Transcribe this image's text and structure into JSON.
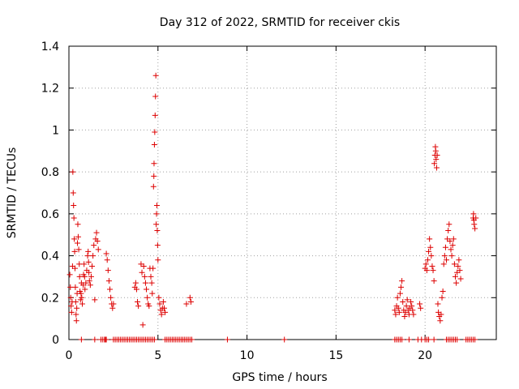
{
  "chart_data": {
    "type": "scatter",
    "title": "Day 312 of 2022, SRMTID for receiver ckis",
    "xlabel": "GPS time / hours",
    "ylabel": "SRMTID / TECUs",
    "xlim": [
      0,
      24
    ],
    "ylim": [
      0,
      1.4
    ],
    "xticks": [
      0,
      5,
      10,
      15,
      20
    ],
    "yticks": [
      0,
      0.2,
      0.4,
      0.6,
      0.8,
      1,
      1.2,
      1.4
    ],
    "ytick_labels": [
      "0",
      "0.2",
      "0.4",
      "0.6",
      "0.8",
      "1",
      "1.2",
      "1.4"
    ],
    "grid": true,
    "marker": "plus",
    "color": "#dd0000",
    "series": [
      {
        "name": "SRMTID",
        "points": [
          [
            0.05,
            0.31
          ],
          [
            0.08,
            0.25
          ],
          [
            0.1,
            0.2
          ],
          [
            0.12,
            0.16
          ],
          [
            0.15,
            0.13
          ],
          [
            0.18,
            0.18
          ],
          [
            0.2,
            0.35
          ],
          [
            0.22,
            0.8
          ],
          [
            0.24,
            0.7
          ],
          [
            0.26,
            0.64
          ],
          [
            0.28,
            0.58
          ],
          [
            0.3,
            0.48
          ],
          [
            0.32,
            0.42
          ],
          [
            0.34,
            0.34
          ],
          [
            0.36,
            0.25
          ],
          [
            0.38,
            0.18
          ],
          [
            0.4,
            0.12
          ],
          [
            0.42,
            0.09
          ],
          [
            0.44,
            0.15
          ],
          [
            0.46,
            0.22
          ],
          [
            0.48,
            0.46
          ],
          [
            0.5,
            0.55
          ],
          [
            0.52,
            0.49
          ],
          [
            0.55,
            0.43
          ],
          [
            0.58,
            0.36
          ],
          [
            0.6,
            0.3
          ],
          [
            0.62,
            0.23
          ],
          [
            0.65,
            0.19
          ],
          [
            0.68,
            0.22
          ],
          [
            0.7,
            0.27
          ],
          [
            0.72,
            0.2
          ],
          [
            0.75,
            0.17
          ],
          [
            0.8,
            0.26
          ],
          [
            0.82,
            0.31
          ],
          [
            0.85,
            0.36
          ],
          [
            0.88,
            0.3
          ],
          [
            0.9,
            0.24
          ],
          [
            0.95,
            0.27
          ],
          [
            1.0,
            0.33
          ],
          [
            1.05,
            0.4
          ],
          [
            1.08,
            0.42
          ],
          [
            1.1,
            0.37
          ],
          [
            1.12,
            0.32
          ],
          [
            1.15,
            0.28
          ],
          [
            1.2,
            0.26
          ],
          [
            1.25,
            0.3
          ],
          [
            1.3,
            0.35
          ],
          [
            1.35,
            0.4
          ],
          [
            1.4,
            0.45
          ],
          [
            1.45,
            0.19
          ],
          [
            1.5,
            0.48
          ],
          [
            1.55,
            0.51
          ],
          [
            1.6,
            0.47
          ],
          [
            1.65,
            0.43
          ],
          [
            2.1,
            0.41
          ],
          [
            2.15,
            0.38
          ],
          [
            2.2,
            0.33
          ],
          [
            2.25,
            0.28
          ],
          [
            2.3,
            0.24
          ],
          [
            2.35,
            0.2
          ],
          [
            2.4,
            0.17
          ],
          [
            2.45,
            0.15
          ],
          [
            2.5,
            0.17
          ],
          [
            3.7,
            0.25
          ],
          [
            3.75,
            0.27
          ],
          [
            3.8,
            0.24
          ],
          [
            3.85,
            0.18
          ],
          [
            3.9,
            0.16
          ],
          [
            4.05,
            0.36
          ],
          [
            4.1,
            0.32
          ],
          [
            4.15,
            0.07
          ],
          [
            4.2,
            0.35
          ],
          [
            4.25,
            0.3
          ],
          [
            4.3,
            0.27
          ],
          [
            4.35,
            0.24
          ],
          [
            4.4,
            0.2
          ],
          [
            4.45,
            0.17
          ],
          [
            4.5,
            0.16
          ],
          [
            4.55,
            0.34
          ],
          [
            4.6,
            0.3
          ],
          [
            4.65,
            0.27
          ],
          [
            4.68,
            0.22
          ],
          [
            4.72,
            0.34
          ],
          [
            4.75,
            0.73
          ],
          [
            4.77,
            0.78
          ],
          [
            4.78,
            0.84
          ],
          [
            4.8,
            0.93
          ],
          [
            4.82,
            0.99
          ],
          [
            4.84,
            1.07
          ],
          [
            4.86,
            1.16
          ],
          [
            4.88,
            1.26
          ],
          [
            4.9,
            0.55
          ],
          [
            4.92,
            0.6
          ],
          [
            4.94,
            0.64
          ],
          [
            4.96,
            0.52
          ],
          [
            4.98,
            0.45
          ],
          [
            5.0,
            0.38
          ],
          [
            5.05,
            0.2
          ],
          [
            5.1,
            0.17
          ],
          [
            5.15,
            0.14
          ],
          [
            5.2,
            0.12
          ],
          [
            5.25,
            0.15
          ],
          [
            5.3,
            0.18
          ],
          [
            5.35,
            0.15
          ],
          [
            5.4,
            0.13
          ],
          [
            6.6,
            0.17
          ],
          [
            6.8,
            0.2
          ],
          [
            6.85,
            0.18
          ],
          [
            18.3,
            0.14
          ],
          [
            18.35,
            0.12
          ],
          [
            18.4,
            0.16
          ],
          [
            18.45,
            0.2
          ],
          [
            18.5,
            0.15
          ],
          [
            18.55,
            0.13
          ],
          [
            18.6,
            0.22
          ],
          [
            18.65,
            0.25
          ],
          [
            18.7,
            0.28
          ],
          [
            18.75,
            0.18
          ],
          [
            18.8,
            0.14
          ],
          [
            18.85,
            0.11
          ],
          [
            18.9,
            0.13
          ],
          [
            18.95,
            0.16
          ],
          [
            19.0,
            0.19
          ],
          [
            19.05,
            0.14
          ],
          [
            19.1,
            0.12
          ],
          [
            19.15,
            0.15
          ],
          [
            19.2,
            0.18
          ],
          [
            19.25,
            0.16
          ],
          [
            19.3,
            0.14
          ],
          [
            19.35,
            0.12
          ],
          [
            19.7,
            0.17
          ],
          [
            19.75,
            0.15
          ],
          [
            20.0,
            0.34
          ],
          [
            20.05,
            0.36
          ],
          [
            20.1,
            0.33
          ],
          [
            20.15,
            0.38
          ],
          [
            20.2,
            0.42
          ],
          [
            20.25,
            0.48
          ],
          [
            20.3,
            0.44
          ],
          [
            20.35,
            0.4
          ],
          [
            20.4,
            0.35
          ],
          [
            20.45,
            0.33
          ],
          [
            20.5,
            0.28
          ],
          [
            20.52,
            0.84
          ],
          [
            20.55,
            0.88
          ],
          [
            20.58,
            0.92
          ],
          [
            20.6,
            0.9
          ],
          [
            20.62,
            0.86
          ],
          [
            20.65,
            0.82
          ],
          [
            20.68,
            0.88
          ],
          [
            20.72,
            0.17
          ],
          [
            20.75,
            0.13
          ],
          [
            20.8,
            0.11
          ],
          [
            20.85,
            0.09
          ],
          [
            20.9,
            0.12
          ],
          [
            20.95,
            0.2
          ],
          [
            21.0,
            0.23
          ],
          [
            21.05,
            0.36
          ],
          [
            21.1,
            0.4
          ],
          [
            21.15,
            0.44
          ],
          [
            21.2,
            0.38
          ],
          [
            21.25,
            0.48
          ],
          [
            21.3,
            0.52
          ],
          [
            21.35,
            0.55
          ],
          [
            21.4,
            0.47
          ],
          [
            21.45,
            0.43
          ],
          [
            21.5,
            0.4
          ],
          [
            21.55,
            0.45
          ],
          [
            21.6,
            0.48
          ],
          [
            21.65,
            0.36
          ],
          [
            21.7,
            0.3
          ],
          [
            21.75,
            0.27
          ],
          [
            21.8,
            0.32
          ],
          [
            21.85,
            0.35
          ],
          [
            21.9,
            0.38
          ],
          [
            21.95,
            0.33
          ],
          [
            22.0,
            0.29
          ],
          [
            22.7,
            0.58
          ],
          [
            22.72,
            0.6
          ],
          [
            22.74,
            0.57
          ],
          [
            22.76,
            0.55
          ],
          [
            22.8,
            0.53
          ],
          [
            22.85,
            0.58
          ],
          [
            0.7,
            0.0
          ],
          [
            1.45,
            0.0
          ],
          [
            1.8,
            0.0
          ],
          [
            1.9,
            0.0
          ],
          [
            2.0,
            0.0
          ],
          [
            2.05,
            0.0
          ],
          [
            2.1,
            0.0
          ],
          [
            2.5,
            0.0
          ],
          [
            2.6,
            0.0
          ],
          [
            2.7,
            0.0
          ],
          [
            2.8,
            0.0
          ],
          [
            2.9,
            0.0
          ],
          [
            3.0,
            0.0
          ],
          [
            3.1,
            0.0
          ],
          [
            3.2,
            0.0
          ],
          [
            3.3,
            0.0
          ],
          [
            3.4,
            0.0
          ],
          [
            3.5,
            0.0
          ],
          [
            3.6,
            0.0
          ],
          [
            3.7,
            0.0
          ],
          [
            3.8,
            0.0
          ],
          [
            3.9,
            0.0
          ],
          [
            4.0,
            0.0
          ],
          [
            4.1,
            0.0
          ],
          [
            4.2,
            0.0
          ],
          [
            4.3,
            0.0
          ],
          [
            4.4,
            0.0
          ],
          [
            4.5,
            0.0
          ],
          [
            4.6,
            0.0
          ],
          [
            4.7,
            0.0
          ],
          [
            4.8,
            0.0
          ],
          [
            5.4,
            0.0
          ],
          [
            5.5,
            0.0
          ],
          [
            5.6,
            0.0
          ],
          [
            5.7,
            0.0
          ],
          [
            5.8,
            0.0
          ],
          [
            5.9,
            0.0
          ],
          [
            6.0,
            0.0
          ],
          [
            6.1,
            0.0
          ],
          [
            6.2,
            0.0
          ],
          [
            6.3,
            0.0
          ],
          [
            6.4,
            0.0
          ],
          [
            6.5,
            0.0
          ],
          [
            6.6,
            0.0
          ],
          [
            6.7,
            0.0
          ],
          [
            6.8,
            0.0
          ],
          [
            6.9,
            0.0
          ],
          [
            8.9,
            0.0
          ],
          [
            12.1,
            0.0
          ],
          [
            18.3,
            0.0
          ],
          [
            18.4,
            0.0
          ],
          [
            18.5,
            0.0
          ],
          [
            18.6,
            0.0
          ],
          [
            18.7,
            0.0
          ],
          [
            19.1,
            0.0
          ],
          [
            19.6,
            0.0
          ],
          [
            19.8,
            0.0
          ],
          [
            20.0,
            0.0
          ],
          [
            20.1,
            0.0
          ],
          [
            20.2,
            0.0
          ],
          [
            20.5,
            0.0
          ],
          [
            21.2,
            0.0
          ],
          [
            21.3,
            0.0
          ],
          [
            21.4,
            0.0
          ],
          [
            21.5,
            0.0
          ],
          [
            21.6,
            0.0
          ],
          [
            21.7,
            0.0
          ],
          [
            21.8,
            0.0
          ],
          [
            22.3,
            0.0
          ],
          [
            22.4,
            0.0
          ],
          [
            22.5,
            0.0
          ],
          [
            22.6,
            0.0
          ],
          [
            22.7,
            0.0
          ],
          [
            22.8,
            0.0
          ]
        ]
      }
    ]
  }
}
